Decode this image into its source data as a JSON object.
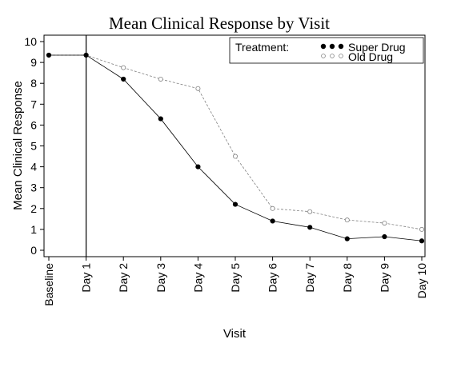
{
  "chart_data": {
    "type": "line",
    "title": "Mean Clinical Response by Visit",
    "xlabel": "Visit",
    "ylabel": "Mean Clinical Response",
    "categories": [
      "Baseline",
      "Day 1",
      "Day 2",
      "Day 3",
      "Day 4",
      "Day 5",
      "Day 6",
      "Day 7",
      "Day 8",
      "Day 9",
      "Day 10"
    ],
    "ylim": [
      0,
      10
    ],
    "yticks": [
      0,
      1,
      2,
      3,
      4,
      5,
      6,
      7,
      8,
      9,
      10
    ],
    "reference_line_at": "Day 1",
    "legend": {
      "title": "Treatment:",
      "placement": "top-right"
    },
    "series": [
      {
        "name": "Super Drug",
        "values": [
          9.35,
          9.35,
          8.2,
          6.3,
          4.0,
          2.2,
          1.4,
          1.1,
          0.55,
          0.65,
          0.45
        ],
        "color": "#000000",
        "marker": "filled-circle",
        "line": "solid"
      },
      {
        "name": "Old Drug",
        "values": [
          9.35,
          9.35,
          8.75,
          8.2,
          7.75,
          4.5,
          2.0,
          1.85,
          1.45,
          1.3,
          1.0
        ],
        "color": "#808080",
        "marker": "open-circle",
        "line": "dashed"
      }
    ]
  }
}
